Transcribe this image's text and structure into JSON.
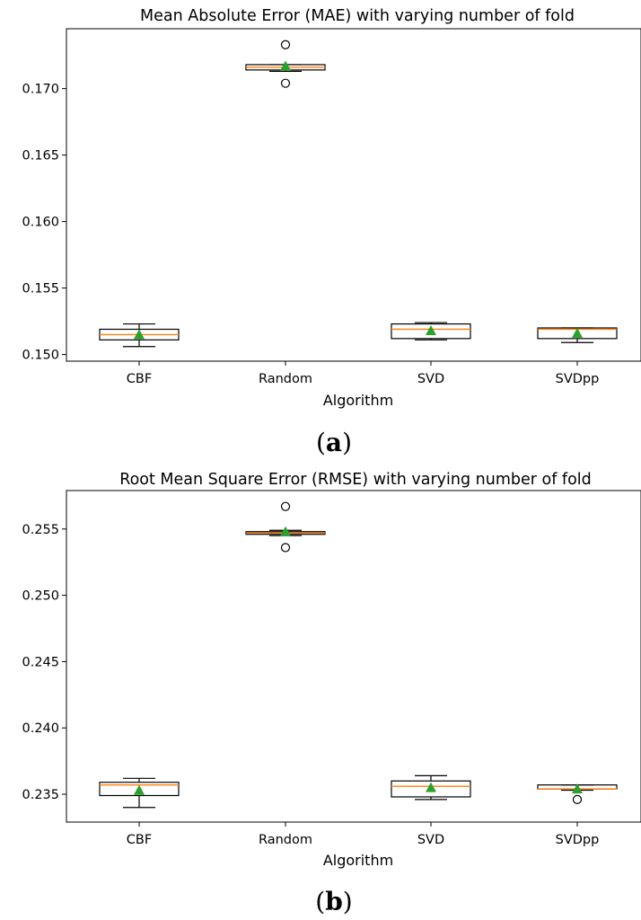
{
  "figure": {
    "panel_captions": [
      "a",
      "b"
    ]
  },
  "chart_data": [
    {
      "type": "box",
      "title": "Mean Absolute Error (MAE) with varying number of fold",
      "xlabel": "Algorithm",
      "ylabel": "",
      "ylim": [
        0.1495,
        0.1745
      ],
      "yticks": [
        "0.150",
        "0.155",
        "0.160",
        "0.165",
        "0.170"
      ],
      "tick_values": [
        0.15,
        0.155,
        0.16,
        0.165,
        0.17
      ],
      "grid": false,
      "colors": {
        "box": "#000000",
        "median": "#ff7f0e",
        "mean": "#2ca02c"
      },
      "categories": [
        "CBF",
        "Random",
        "SVD",
        "SVDpp"
      ],
      "boxes": [
        {
          "whisker_low": 0.1506,
          "q1": 0.1511,
          "median": 0.1515,
          "q3": 0.1519,
          "whisker_high": 0.1523,
          "mean": 0.1515,
          "fliers": []
        },
        {
          "whisker_low": 0.1713,
          "q1": 0.1714,
          "median": 0.1716,
          "q3": 0.1718,
          "whisker_high": 0.1718,
          "mean": 0.1717,
          "fliers": [
            0.1704,
            0.1733
          ]
        },
        {
          "whisker_low": 0.1511,
          "q1": 0.1512,
          "median": 0.1519,
          "q3": 0.1523,
          "whisker_high": 0.1524,
          "mean": 0.1518,
          "fliers": []
        },
        {
          "whisker_low": 0.1509,
          "q1": 0.1512,
          "median": 0.1519,
          "q3": 0.152,
          "whisker_high": 0.152,
          "mean": 0.1516,
          "fliers": []
        }
      ]
    },
    {
      "type": "box",
      "title": "Root Mean Square Error (RMSE) with varying number of fold",
      "xlabel": "Algorithm",
      "ylabel": "",
      "ylim": [
        0.2329,
        0.2579
      ],
      "yticks": [
        "0.235",
        "0.240",
        "0.245",
        "0.250",
        "0.255"
      ],
      "tick_values": [
        0.235,
        0.24,
        0.245,
        0.25,
        0.255
      ],
      "grid": false,
      "colors": {
        "box": "#000000",
        "median": "#ff7f0e",
        "mean": "#2ca02c"
      },
      "categories": [
        "CBF",
        "Random",
        "SVD",
        "SVDpp"
      ],
      "boxes": [
        {
          "whisker_low": 0.234,
          "q1": 0.2349,
          "median": 0.2357,
          "q3": 0.2359,
          "whisker_high": 0.2362,
          "mean": 0.2353,
          "fliers": []
        },
        {
          "whisker_low": 0.2545,
          "q1": 0.2546,
          "median": 0.2547,
          "q3": 0.2548,
          "whisker_high": 0.2549,
          "mean": 0.2548,
          "fliers": [
            0.2536,
            0.2567
          ]
        },
        {
          "whisker_low": 0.2346,
          "q1": 0.2348,
          "median": 0.2356,
          "q3": 0.236,
          "whisker_high": 0.2364,
          "mean": 0.2355,
          "fliers": []
        },
        {
          "whisker_low": 0.2353,
          "q1": 0.2354,
          "median": 0.2354,
          "q3": 0.2357,
          "whisker_high": 0.2357,
          "mean": 0.2354,
          "fliers": [
            0.2346
          ]
        }
      ]
    }
  ]
}
